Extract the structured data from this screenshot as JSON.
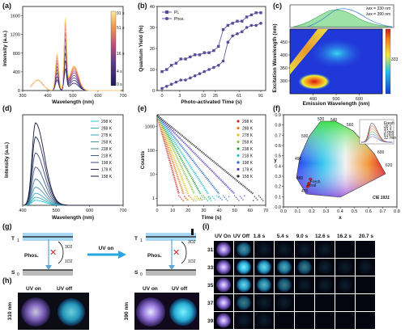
{
  "panel_labels": [
    "(a)",
    "(b)",
    "(c)",
    "(d)",
    "(e)",
    "(f)",
    "(g)",
    "(h)",
    "(i)"
  ],
  "colors": {
    "purple": "#5b4a9b",
    "deep_blue": "#0a1a7a",
    "red": "#d62626",
    "cyan": "#29c6d8"
  },
  "chart_data": [
    {
      "id": "a",
      "type": "line",
      "xlabel": "Wavelength (nm)",
      "ylabel": "Intensity (a.u.)",
      "xlim": [
        300,
        700
      ],
      "ylim": [
        0,
        1800
      ],
      "xticks": [
        "300",
        "400",
        "500",
        "600",
        "700"
      ],
      "yticks": [
        "0",
        "400",
        "800",
        "1200",
        "1600"
      ],
      "colorbar": {
        "labels": [
          "91 s",
          "51 s",
          "16 s",
          "4 s",
          "0 s"
        ]
      },
      "peaks": [
        {
          "x": 437,
          "values": [
            230,
            300,
            380,
            450,
            520,
            590,
            650,
            710,
            760,
            800
          ]
        },
        {
          "x": 470,
          "values": [
            450,
            620,
            780,
            930,
            1080,
            1200,
            1310,
            1400,
            1460,
            1500
          ]
        }
      ],
      "series_count": 10
    },
    {
      "id": "b",
      "type": "line",
      "xlabel": "Photo-activated Time (s)",
      "ylabel": "Quantum Yield (%)",
      "xlim": [
        0,
        91
      ],
      "ylim": [
        0,
        40
      ],
      "xticks": [
        "0",
        "3",
        "10",
        "25",
        "61",
        "91"
      ],
      "yticks": [
        "0",
        "10",
        "20",
        "30",
        "40"
      ],
      "series": [
        {
          "name": "PL",
          "color": "#5b4a9b",
          "marker": "square",
          "values": [
            9,
            10,
            12,
            13,
            15,
            15,
            16,
            17,
            17,
            18,
            18,
            19,
            21,
            29,
            31,
            32,
            33,
            33,
            35,
            36,
            37,
            37
          ]
        },
        {
          "name": "Phos.",
          "color": "#5b4a9b",
          "marker": "circle",
          "values": [
            1,
            2,
            3,
            4,
            5,
            5,
            6,
            7,
            8,
            9,
            10,
            11,
            12,
            14,
            23,
            26,
            27,
            28,
            30,
            31,
            31,
            32
          ]
        }
      ]
    },
    {
      "id": "c",
      "type": "heatmap",
      "xlabel": "Emission Wavelength (nm)",
      "ylabel": "Excitation Wavelength (nm)",
      "xlim": [
        300,
        700
      ],
      "ylim": [
        250,
        500
      ],
      "xticks": [
        "400",
        "500",
        "600"
      ],
      "yticks": [
        "300",
        "350",
        "400",
        "450"
      ],
      "colorbar": {
        "max_label": "333"
      },
      "top_legend": [
        "λex = 330 nm",
        "λex = 390 nm"
      ]
    },
    {
      "id": "d",
      "type": "line",
      "xlabel": "Wavelength (nm)",
      "ylabel": "Intensity (a.u.)",
      "xlim": [
        400,
        700
      ],
      "xticks": [
        "400",
        "500",
        "600",
        "700"
      ],
      "series_names": [
        "298 K",
        "288 K",
        "278 K",
        "258 K",
        "238 K",
        "218 K",
        "198 K",
        "178 K",
        "158 K"
      ],
      "series_colors": [
        "#29c6d8",
        "#34b7c7",
        "#3fa6b6",
        "#4a94a5",
        "#487a96",
        "#445f87",
        "#3c4a7a",
        "#2a2f5e",
        "#1a1a3a"
      ],
      "peak_values": [
        50,
        80,
        120,
        180,
        260,
        380,
        520,
        680,
        820
      ]
    },
    {
      "id": "e",
      "type": "scatter",
      "xlabel": "Time (s)",
      "ylabel": "Counts",
      "xlim": [
        0,
        70
      ],
      "xticks": [
        "0",
        "10",
        "20",
        "30",
        "40",
        "50",
        "60",
        "70"
      ],
      "yticks": [
        "1",
        "10",
        "100",
        "1000"
      ],
      "series_names": [
        "298 K",
        "288 K",
        "278 K",
        "258 K",
        "238 K",
        "218 K",
        "198 K",
        "178 K",
        "158 K"
      ],
      "series_colors": [
        "#d62626",
        "#e8781e",
        "#e6c41c",
        "#89c43a",
        "#2aa33e",
        "#29c6d8",
        "#2e6bd3",
        "#5b3cc4",
        "#2a2a2a"
      ],
      "decay_end_x": [
        14,
        17,
        20,
        24,
        28,
        33,
        40,
        50,
        62
      ]
    },
    {
      "id": "f",
      "type": "scatter",
      "xlabel": "x",
      "ylabel": "y",
      "xlim": [
        0,
        0.8
      ],
      "ylim": [
        0,
        0.9
      ],
      "xticks": [
        "0.0",
        "0.1",
        "0.2",
        "0.3",
        "0.4",
        "0.5",
        "0.6",
        "0.7",
        "0.8"
      ],
      "yticks": [
        "0.0",
        "0.1",
        "0.2",
        "0.3",
        "0.4",
        "0.5",
        "0.6",
        "0.7",
        "0.8",
        "0.9"
      ],
      "wavelength_labels": [
        "520",
        "540",
        "560",
        "580",
        "600",
        "620",
        "500",
        "490",
        "480",
        "470"
      ],
      "points": [
        {
          "x": 0.17,
          "y": 0.2
        },
        {
          "x": 0.18,
          "y": 0.23
        },
        {
          "x": 0.19,
          "y": 0.27
        }
      ],
      "annotation": "CIE 1931",
      "point_labels": [
        "Fresh",
        "Final"
      ],
      "inset_legend": [
        "Fresh",
        "16 s",
        "91 s",
        "3 min",
        "6 min",
        "12 min"
      ]
    }
  ],
  "diagram_g": {
    "left": {
      "t1": "T",
      "t1_sub": "1",
      "s0": "S",
      "s0_sub": "0",
      "o2_top": "3O2",
      "o2_bottom": "1O2",
      "phos": "Phos."
    },
    "arrow_label": "UV on",
    "right": {
      "t1": "T",
      "t1_sub": "1",
      "s0": "S",
      "s0_sub": "0",
      "o2_top": "3O2",
      "o2_bottom": "1O2",
      "phos": "Phos."
    }
  },
  "photos_h": {
    "wavelengths": [
      "310 nm",
      "390 nm"
    ],
    "labels": [
      "UV on",
      "UV off",
      "UV on",
      "UV off"
    ]
  },
  "photos_i": {
    "header": [
      "UV On",
      "UV Off",
      "1.8 s",
      "5.4 s",
      "9.0 s",
      "12.6 s",
      "16.2 s",
      "20.7 s"
    ],
    "rows": [
      "313 K",
      "333 K",
      "353 K",
      "373 K",
      "393 K"
    ]
  }
}
